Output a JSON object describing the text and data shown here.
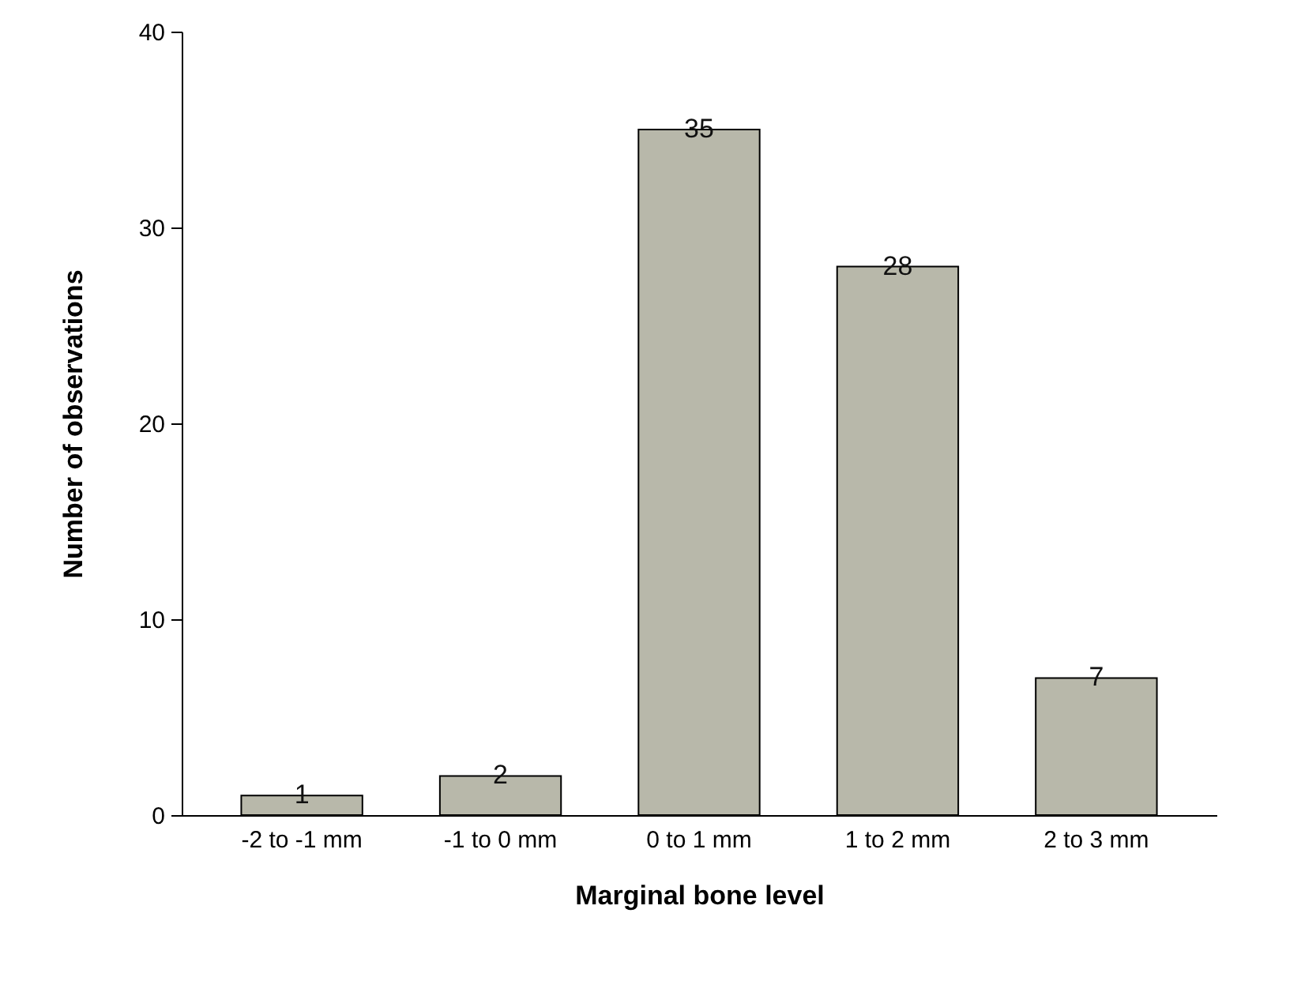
{
  "chart_data": {
    "type": "bar",
    "xlabel": "Marginal bone level",
    "ylabel": "Number of observations",
    "categories": [
      "-2 to -1 mm",
      "-1 to 0 mm",
      "0 to 1 mm",
      "1 to 2 mm",
      "2 to 3 mm"
    ],
    "values": [
      1,
      2,
      35,
      28,
      7
    ],
    "color": "#b8b8aa",
    "ylim": [
      0,
      40
    ],
    "yticks": [
      0,
      10,
      20,
      30,
      40
    ],
    "data_labels": true
  }
}
